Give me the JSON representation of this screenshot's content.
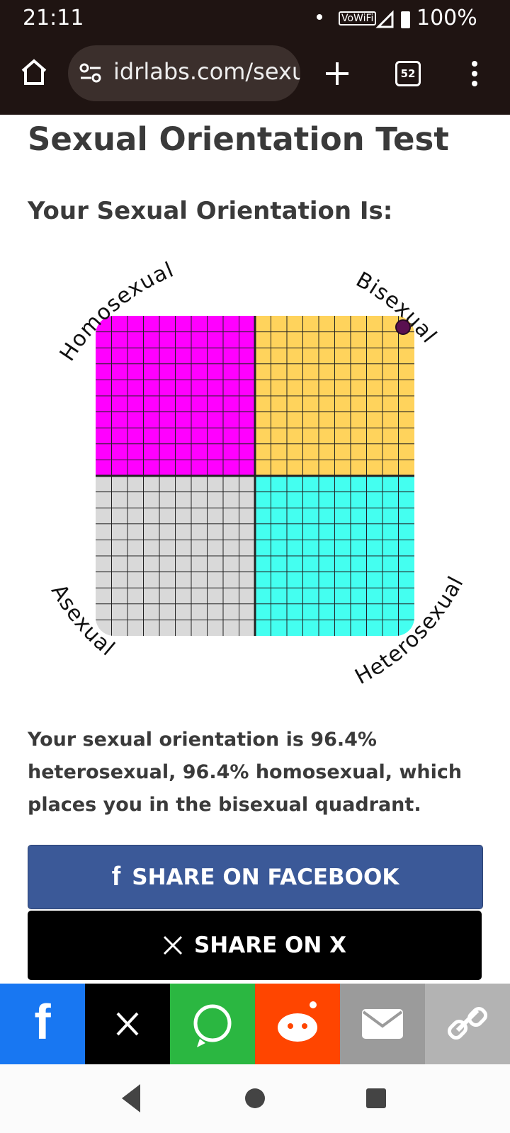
{
  "status_bar": {
    "time": "21:11",
    "wifi_label": "VoWiFi",
    "battery": "100%"
  },
  "browser": {
    "url": "idrlabs.com/sexu",
    "tab_count": "52"
  },
  "page": {
    "title": "Sexual Orientation Test",
    "subtitle": "Your Sexual Orientation Is:",
    "quadrant_labels": {
      "top_left": "Homosexual",
      "top_right": "Bisexual",
      "bottom_left": "Asexual",
      "bottom_right": "Heterosexual"
    },
    "result": "Your sexual orientation is 96.4% heterosexual, 96.4% homosexual, which places you in the bisexual quadrant.",
    "buttons": {
      "facebook": "SHARE ON FACEBOOK",
      "x": "SHARE ON X"
    }
  }
}
